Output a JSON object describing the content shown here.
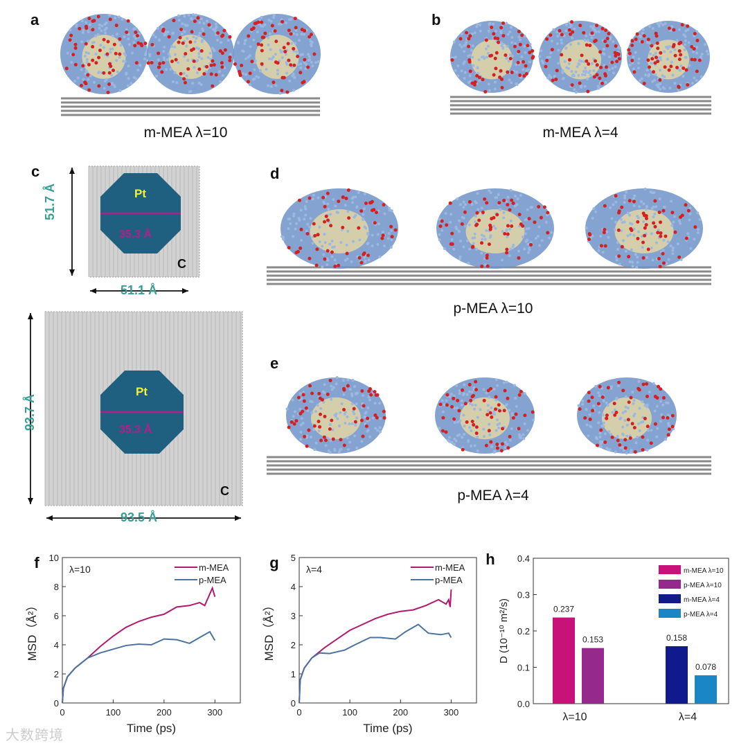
{
  "panels": {
    "a": {
      "label": "a",
      "caption": "m-MEA  λ=10"
    },
    "b": {
      "label": "b",
      "caption": "m-MEA  λ=4"
    },
    "c": {
      "label": "c",
      "top": {
        "pt": "Pt",
        "diameter": "35.3 Å",
        "height": "51.7 Å",
        "width": "51.1 Å",
        "axis": "C"
      },
      "bottom": {
        "pt": "Pt",
        "diameter": "35.3 Å",
        "height": "93.7 Å",
        "width": "93.5 Å",
        "axis": "C"
      }
    },
    "d": {
      "label": "d",
      "caption": "p-MEA  λ=10"
    },
    "e": {
      "label": "e",
      "caption": "p-MEA  λ=4"
    }
  },
  "colors": {
    "m_line": "#b0196e",
    "p_line": "#4a73a0",
    "ionomer": "#6f93c8",
    "water": "#d42020",
    "backbone": "#e8d9a0",
    "pt": "#1f5f7f",
    "dim": "#3a9e96",
    "diam": "#b0208a"
  },
  "watermark": "大数跨境",
  "chart_data": [
    {
      "id": "f",
      "label": "f",
      "type": "line",
      "annotation": "λ=10",
      "xlabel": "Time (ps)",
      "ylabel": "MSD（Å²）",
      "xlim": [
        0,
        350
      ],
      "ylim": [
        0,
        10
      ],
      "xticks": [
        "0",
        "100",
        "200",
        "300"
      ],
      "yticks": [
        "0",
        "2",
        "4",
        "6",
        "8",
        "10"
      ],
      "legend": "top-right",
      "series": [
        {
          "name": "m-MEA",
          "color": "#b0196e",
          "x": [
            0,
            2,
            10,
            25,
            50,
            75,
            100,
            125,
            150,
            175,
            200,
            225,
            250,
            270,
            280,
            295,
            300
          ],
          "y": [
            0,
            1,
            1.8,
            2.4,
            3.1,
            3.9,
            4.6,
            5.2,
            5.6,
            5.9,
            6.1,
            6.6,
            6.7,
            6.9,
            6.7,
            7.9,
            7.3
          ]
        },
        {
          "name": "p-MEA",
          "color": "#4a73a0",
          "x": [
            0,
            2,
            10,
            25,
            50,
            75,
            100,
            125,
            150,
            175,
            200,
            225,
            250,
            270,
            290,
            300
          ],
          "y": [
            0,
            1,
            1.8,
            2.4,
            3.1,
            3.45,
            3.7,
            3.95,
            4.05,
            4.0,
            4.4,
            4.35,
            4.1,
            4.5,
            4.9,
            4.3
          ]
        }
      ]
    },
    {
      "id": "g",
      "label": "g",
      "type": "line",
      "annotation": "λ=4",
      "xlabel": "Time (ps)",
      "ylabel": "MSD（Å²）",
      "xlim": [
        0,
        350
      ],
      "ylim": [
        0,
        5
      ],
      "xticks": [
        "0",
        "100",
        "200",
        "300"
      ],
      "yticks": [
        "0",
        "1",
        "2",
        "3",
        "4",
        "5"
      ],
      "legend": "top-right",
      "series": [
        {
          "name": "m-MEA",
          "color": "#b0196e",
          "x": [
            0,
            2,
            10,
            25,
            50,
            75,
            100,
            125,
            150,
            175,
            200,
            225,
            250,
            275,
            290,
            295,
            298,
            300
          ],
          "y": [
            0,
            0.8,
            1.2,
            1.55,
            1.9,
            2.2,
            2.5,
            2.7,
            2.9,
            3.05,
            3.15,
            3.2,
            3.35,
            3.55,
            3.4,
            3.55,
            3.3,
            3.9
          ]
        },
        {
          "name": "p-MEA",
          "color": "#4a73a0",
          "x": [
            0,
            2,
            10,
            25,
            40,
            60,
            90,
            110,
            140,
            160,
            190,
            210,
            235,
            255,
            280,
            295,
            300
          ],
          "y": [
            0,
            0.8,
            1.2,
            1.55,
            1.72,
            1.7,
            1.82,
            2.0,
            2.25,
            2.25,
            2.2,
            2.45,
            2.7,
            2.4,
            2.35,
            2.4,
            2.25
          ]
        }
      ]
    },
    {
      "id": "h",
      "label": "h",
      "type": "bar",
      "ylabel": "D (10⁻¹⁰ m²/s)",
      "ylim": [
        0,
        0.4
      ],
      "yticks": [
        "0.0",
        "0.1",
        "0.2",
        "0.3",
        "0.4"
      ],
      "categories": [
        "λ=10",
        "λ=4"
      ],
      "legend": "top-right",
      "series": [
        {
          "name": "m-MEA λ=10",
          "color": "#c8127a",
          "category": 0,
          "value": 0.237,
          "label": "0.237"
        },
        {
          "name": "p-MEA λ=10",
          "color": "#962a8c",
          "category": 0,
          "value": 0.153,
          "label": "0.153"
        },
        {
          "name": "m-MEA λ=4",
          "color": "#101a8c",
          "category": 1,
          "value": 0.158,
          "label": "0.158"
        },
        {
          "name": "p-MEA λ=4",
          "color": "#1b86c6",
          "category": 1,
          "value": 0.078,
          "label": "0.078"
        }
      ]
    }
  ]
}
